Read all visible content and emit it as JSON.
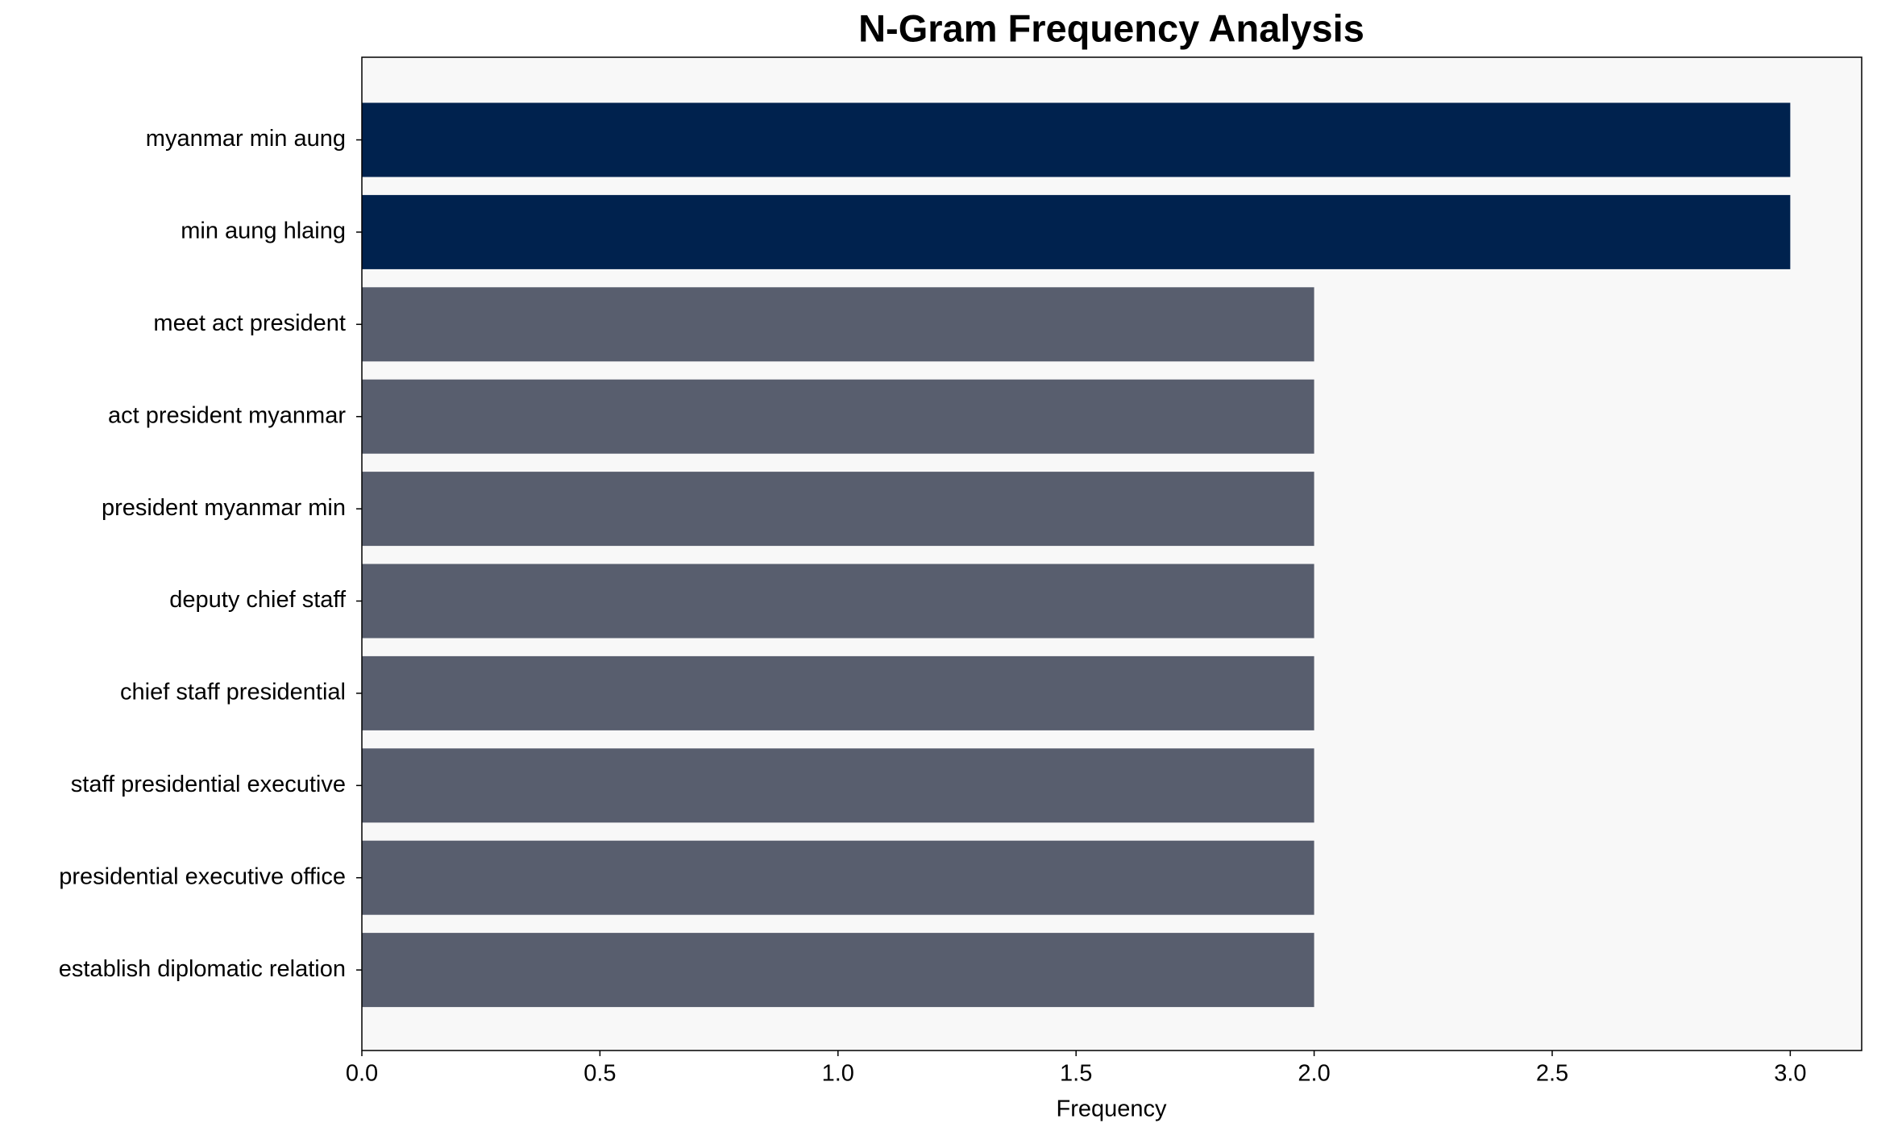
{
  "chart_data": {
    "type": "barh",
    "title": "N-Gram Frequency Analysis",
    "xlabel": "Frequency",
    "categories": [
      "myanmar min aung",
      "min aung hlaing",
      "meet act president",
      "act president myanmar",
      "president myanmar min",
      "deputy chief staff",
      "chief staff presidential",
      "staff presidential executive",
      "presidential executive office",
      "establish diplomatic relation"
    ],
    "values": [
      3,
      3,
      2,
      2,
      2,
      2,
      2,
      2,
      2,
      2
    ],
    "colors": [
      "#00224e",
      "#00224e",
      "#585e6e",
      "#585e6e",
      "#585e6e",
      "#585e6e",
      "#585e6e",
      "#585e6e",
      "#585e6e",
      "#585e6e"
    ],
    "xlim": [
      0,
      3.15
    ],
    "xticks": [
      {
        "value": 0,
        "label": "0.0"
      },
      {
        "value": 0.5,
        "label": "0.5"
      },
      {
        "value": 1,
        "label": "1.0"
      },
      {
        "value": 1.5,
        "label": "1.5"
      },
      {
        "value": 2,
        "label": "2.0"
      },
      {
        "value": 2.5,
        "label": "2.5"
      },
      {
        "value": 3,
        "label": "3.0"
      }
    ],
    "background": "#f8f8f8"
  }
}
